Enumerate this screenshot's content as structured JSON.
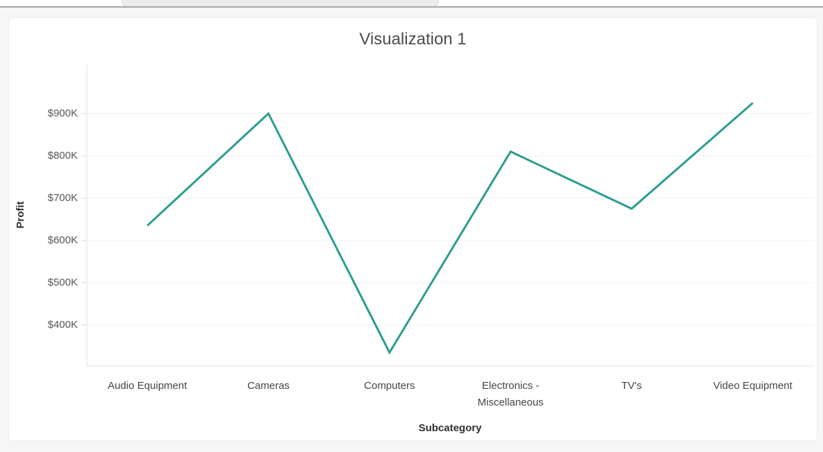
{
  "chart_data": {
    "type": "line",
    "title": "Visualization 1",
    "xlabel": "Subcategory",
    "ylabel": "Profit",
    "categories": [
      "Audio Equipment",
      "Cameras",
      "Computers",
      "Electronics - Miscellaneous",
      "TV's",
      "Video Equipment"
    ],
    "series": [
      {
        "name": "Profit",
        "values": [
          635000,
          900000,
          335000,
          810000,
          675000,
          925000
        ]
      }
    ],
    "ylim": [
      303000,
      1016000
    ],
    "yticks": [
      {
        "value": 900000,
        "label": "$900K"
      },
      {
        "value": 800000,
        "label": "$800K"
      },
      {
        "value": 700000,
        "label": "$700K"
      },
      {
        "value": 600000,
        "label": "$600K"
      },
      {
        "value": 500000,
        "label": "$500K"
      },
      {
        "value": 400000,
        "label": "$400K"
      }
    ],
    "grid": "horizontal",
    "legend": "none",
    "line_color": "#2a9d8f"
  },
  "colors": {
    "page_bg": "#f6f6f6",
    "card_bg": "#ffffff",
    "gridline": "#f0f0f0",
    "axis_line": "#e0e0e0",
    "tick_mark": "#d8d8d8",
    "tick_text": "#565656",
    "category_text": "#454545",
    "axis_title_text": "#303030",
    "chart_title_text": "#4c4c4c",
    "topbar_divider": "#a6a6a6",
    "tab_remnant_fill": "#ececec",
    "tab_remnant_border": "#d9d9d9"
  }
}
